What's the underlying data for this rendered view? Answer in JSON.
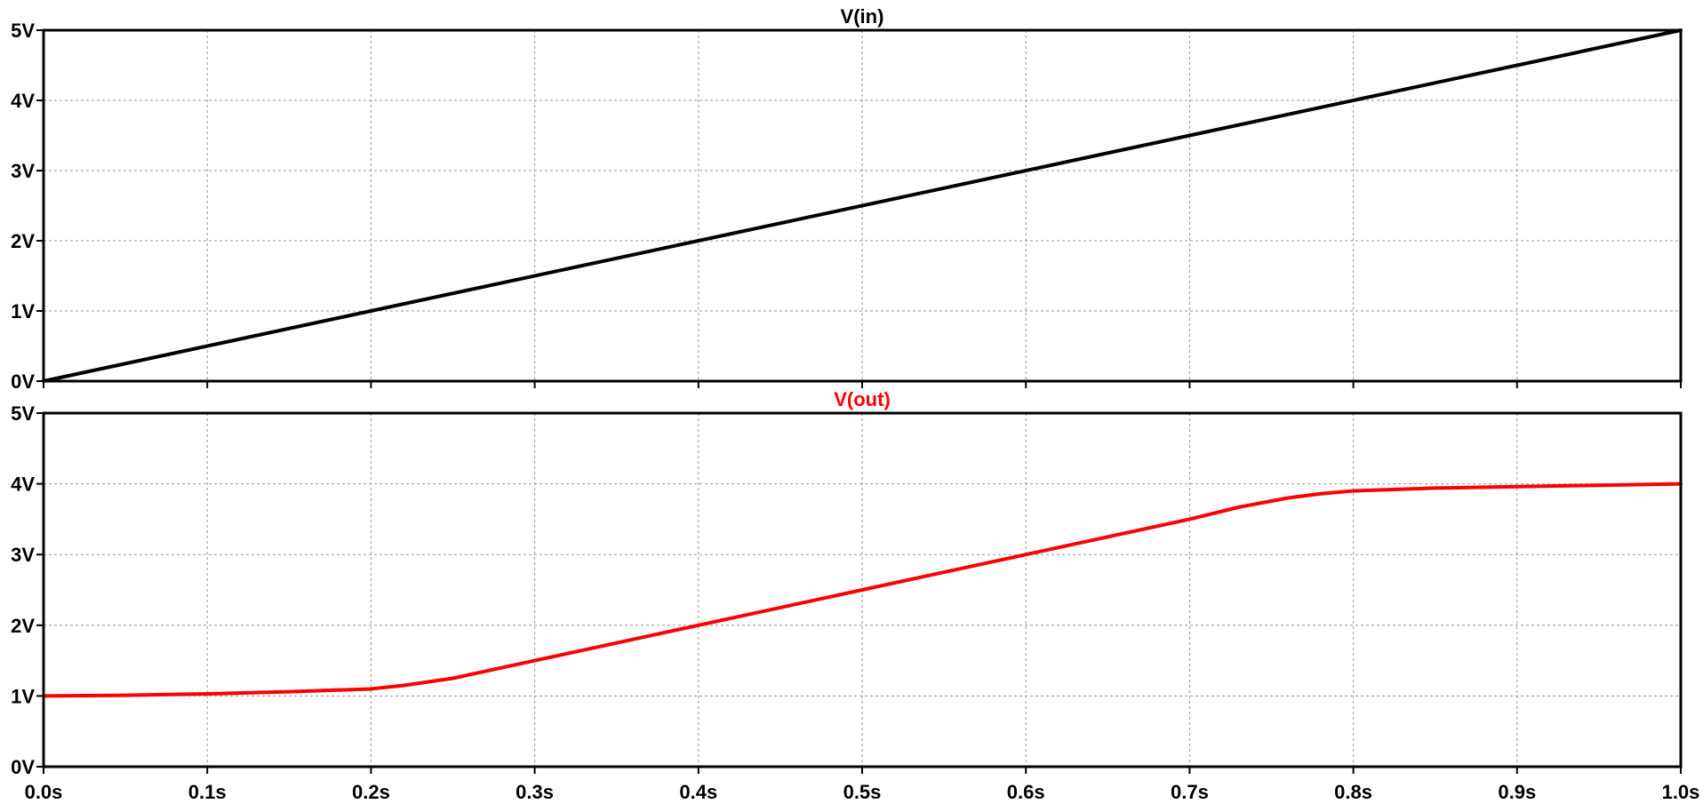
{
  "chart_data": [
    {
      "type": "line",
      "title": "V(in)",
      "title_color": "#000000",
      "xlim": [
        0,
        1.0
      ],
      "ylim": [
        0,
        5
      ],
      "x_ticks": [
        "0.0s",
        "0.1s",
        "0.2s",
        "0.3s",
        "0.4s",
        "0.5s",
        "0.6s",
        "0.7s",
        "0.8s",
        "0.9s",
        "1.0s"
      ],
      "y_ticks": [
        "0V",
        "1V",
        "2V",
        "3V",
        "4V",
        "5V"
      ],
      "grid": true,
      "series": [
        {
          "name": "V(in)",
          "color": "#000000",
          "x": [
            0.0,
            1.0
          ],
          "y": [
            0.0,
            5.0
          ]
        }
      ]
    },
    {
      "type": "line",
      "title": "V(out)",
      "title_color": "#ff0000",
      "xlim": [
        0,
        1.0
      ],
      "ylim": [
        0,
        5
      ],
      "x_ticks": [
        "0.0s",
        "0.1s",
        "0.2s",
        "0.3s",
        "0.4s",
        "0.5s",
        "0.6s",
        "0.7s",
        "0.8s",
        "0.9s",
        "1.0s"
      ],
      "y_ticks": [
        "0V",
        "1V",
        "2V",
        "3V",
        "4V",
        "5V"
      ],
      "grid": true,
      "series": [
        {
          "name": "V(out)",
          "color": "#ff0000",
          "x": [
            0.0,
            0.05,
            0.1,
            0.15,
            0.2,
            0.22,
            0.25,
            0.3,
            0.35,
            0.4,
            0.45,
            0.5,
            0.55,
            0.6,
            0.65,
            0.7,
            0.73,
            0.76,
            0.78,
            0.8,
            0.85,
            0.9,
            0.95,
            1.0
          ],
          "y": [
            1.0,
            1.01,
            1.03,
            1.06,
            1.1,
            1.15,
            1.25,
            1.5,
            1.75,
            2.0,
            2.25,
            2.5,
            2.75,
            3.0,
            3.25,
            3.5,
            3.67,
            3.8,
            3.86,
            3.9,
            3.94,
            3.96,
            3.98,
            4.0
          ]
        }
      ]
    }
  ]
}
